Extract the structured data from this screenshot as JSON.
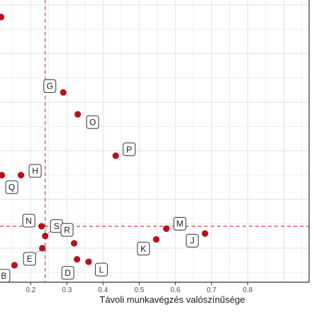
{
  "chart_data": {
    "type": "scatter",
    "title": "",
    "xlabel": "Távoli munkavégzés valószínűsége",
    "ylabel": "",
    "xlim": [
      0.115,
      0.97
    ],
    "ylim": [
      0.03,
      0.61
    ],
    "x_ticks": [
      0.2,
      0.3,
      0.4,
      0.5,
      0.6,
      0.7,
      0.8
    ],
    "x_tick_labels": [
      "0.2",
      "0.3",
      "0.4",
      "0.5",
      "0.6",
      "0.7",
      "0.8"
    ],
    "grid": true,
    "reference_lines": {
      "x": 0.24,
      "y": 0.145
    },
    "colors": {
      "point": "#b5121b",
      "reference_line": "#d62728",
      "grid": "#dbe6f5"
    },
    "points": [
      {
        "label": "",
        "x": 0.118,
        "y": 0.575
      },
      {
        "label": "G",
        "x": 0.29,
        "y": 0.42
      },
      {
        "label": "O",
        "x": 0.33,
        "y": 0.375
      },
      {
        "label": "P",
        "x": 0.435,
        "y": 0.29
      },
      {
        "label": "H",
        "x": 0.173,
        "y": 0.25
      },
      {
        "label": "Q",
        "x": 0.12,
        "y": 0.25
      },
      {
        "label": "N",
        "x": 0.23,
        "y": 0.145
      },
      {
        "label": "S",
        "x": 0.24,
        "y": 0.125
      },
      {
        "label": "R",
        "x": 0.32,
        "y": 0.11
      },
      {
        "label": "E",
        "x": 0.232,
        "y": 0.1
      },
      {
        "label": "M",
        "x": 0.575,
        "y": 0.14
      },
      {
        "label": "K",
        "x": 0.547,
        "y": 0.118
      },
      {
        "label": "J",
        "x": 0.682,
        "y": 0.13
      },
      {
        "label": "D",
        "x": 0.328,
        "y": 0.077
      },
      {
        "label": "L",
        "x": 0.36,
        "y": 0.072
      },
      {
        "label": "B",
        "x": 0.155,
        "y": 0.065
      }
    ]
  }
}
